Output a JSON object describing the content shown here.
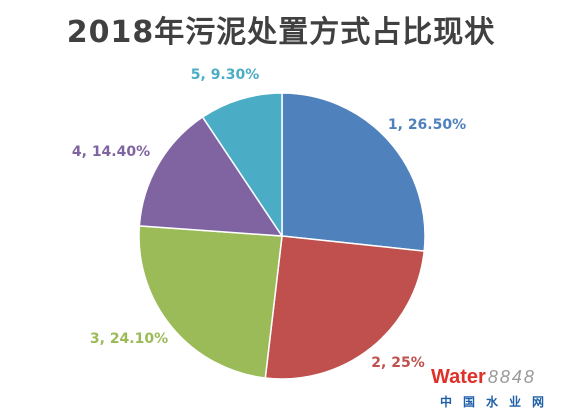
{
  "chart_data": {
    "type": "pie",
    "title": "2018年污泥处置方式占比现状",
    "categories": [
      "1",
      "2",
      "3",
      "4",
      "5"
    ],
    "values": [
      26.5,
      25,
      24.1,
      14.4,
      9.3
    ],
    "percent_labels": [
      "26.50%",
      "25%",
      "24.10%",
      "14.40%",
      "9.30%"
    ],
    "label_separator": ", ",
    "colors": [
      "#4F81BD",
      "#C0504D",
      "#9BBB59",
      "#8064A2",
      "#4BACC6"
    ],
    "legend": "none"
  },
  "watermark": {
    "logo_brand": "Water",
    "logo_number": "8848",
    "logo_site": "中国水业网"
  }
}
